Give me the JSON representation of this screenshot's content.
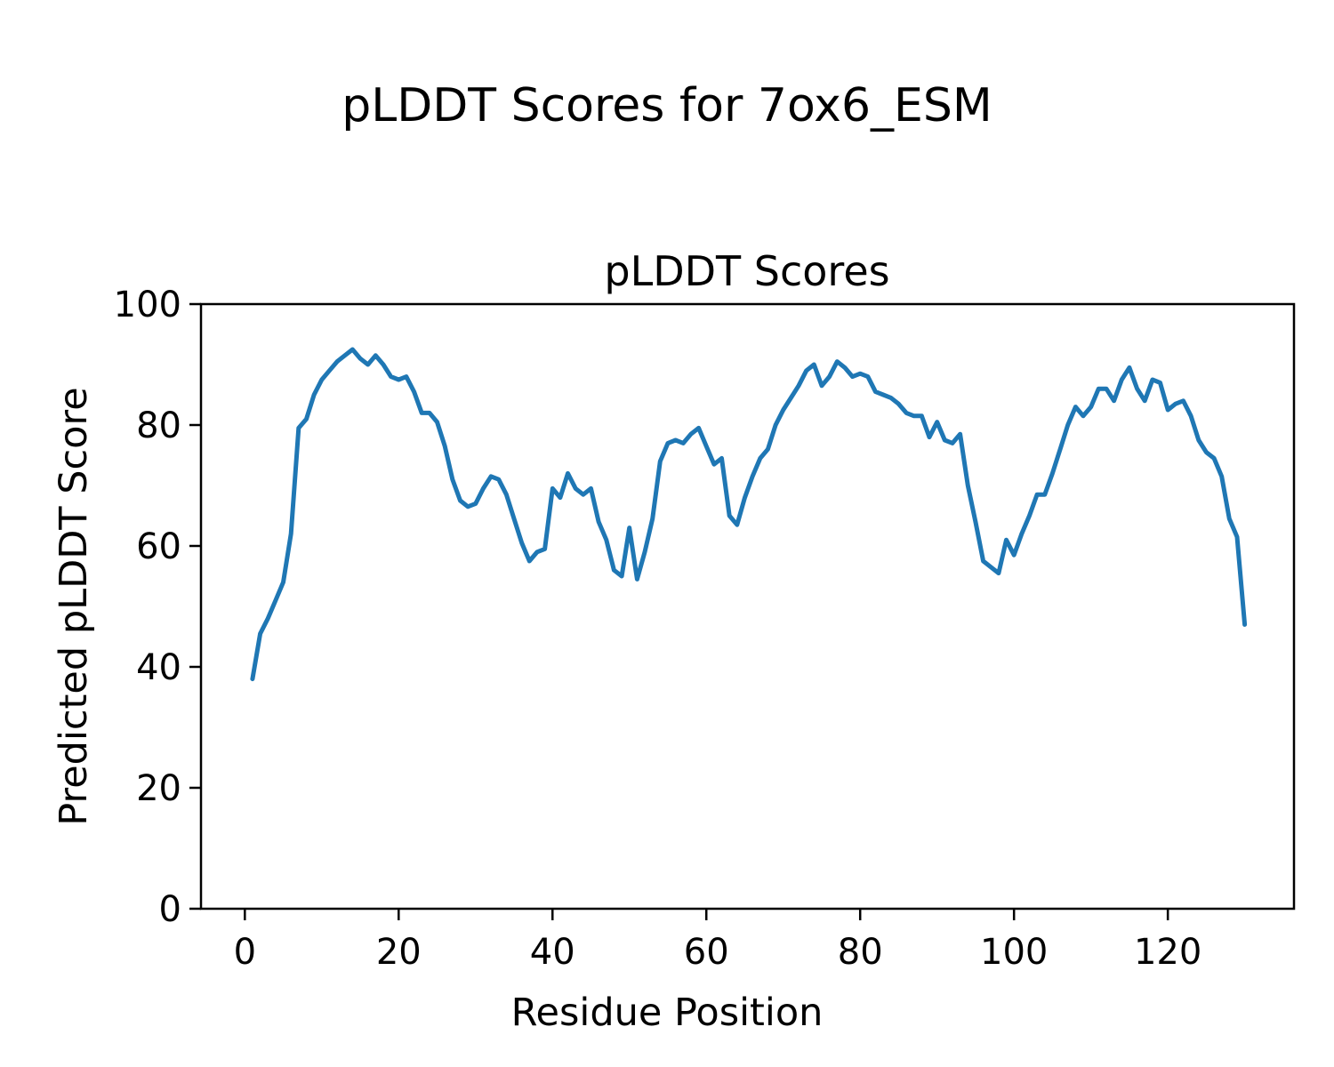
{
  "chart_data": {
    "type": "line",
    "suptitle": "pLDDT Scores for 7ox6_ESM",
    "title": "pLDDT Scores",
    "xlabel": "Residue Position",
    "ylabel": "Predicted pLDDT Score",
    "xlim": [
      -5.7,
      136.4
    ],
    "ylim": [
      0,
      100
    ],
    "xticks": [
      0,
      20,
      40,
      60,
      80,
      100,
      120
    ],
    "yticks": [
      0,
      20,
      40,
      60,
      80,
      100
    ],
    "grid": false,
    "legend_position": "none",
    "line_color": "#1f77b4",
    "line_width": 5,
    "text_color": "#000000",
    "spine_color": "#000000",
    "series": [
      {
        "name": "pLDDT",
        "x": [
          1,
          2,
          3,
          4,
          5,
          6,
          7,
          8,
          9,
          10,
          11,
          12,
          13,
          14,
          15,
          16,
          17,
          18,
          19,
          20,
          21,
          22,
          23,
          24,
          25,
          26,
          27,
          28,
          29,
          30,
          31,
          32,
          33,
          34,
          35,
          36,
          37,
          38,
          39,
          40,
          41,
          42,
          43,
          44,
          45,
          46,
          47,
          48,
          49,
          50,
          51,
          52,
          53,
          54,
          55,
          56,
          57,
          58,
          59,
          60,
          61,
          62,
          63,
          64,
          65,
          66,
          67,
          68,
          69,
          70,
          71,
          72,
          73,
          74,
          75,
          76,
          77,
          78,
          79,
          80,
          81,
          82,
          83,
          84,
          85,
          86,
          87,
          88,
          89,
          90,
          91,
          92,
          93,
          94,
          95,
          96,
          97,
          98,
          99,
          100,
          101,
          102,
          103,
          104,
          105,
          106,
          107,
          108,
          109,
          110,
          111,
          112,
          113,
          114,
          115,
          116,
          117,
          118,
          119,
          120,
          121,
          122,
          123,
          124,
          125,
          126,
          127,
          128,
          129,
          130
        ],
        "y": [
          38,
          45.5,
          48,
          51,
          54,
          62,
          79.5,
          81,
          85,
          87.5,
          89,
          90.5,
          91.5,
          92.5,
          91,
          90,
          91.5,
          90,
          88,
          87.5,
          88,
          85.5,
          82,
          82,
          80.5,
          76.5,
          71,
          67.5,
          66.5,
          67,
          69.5,
          71.5,
          71,
          68.5,
          64.5,
          60.5,
          57.5,
          59,
          59.5,
          69.5,
          68,
          72,
          69.5,
          68.5,
          69.5,
          64,
          61,
          56,
          55,
          63,
          54.5,
          59,
          64.5,
          74,
          77,
          77.5,
          77,
          78.5,
          79.5,
          76.5,
          73.5,
          74.5,
          65,
          63.5,
          68,
          71.5,
          74.5,
          76,
          80,
          82.5,
          84.5,
          86.5,
          89,
          90,
          86.5,
          88,
          90.5,
          89.5,
          88,
          88.5,
          88,
          85.5,
          85,
          84.5,
          83.5,
          82,
          81.5,
          81.5,
          78,
          80.5,
          77.5,
          77,
          78.5,
          70,
          64,
          57.5,
          56.5,
          55.5,
          61,
          58.5,
          62,
          65,
          68.5,
          68.5,
          72,
          76,
          80,
          83,
          81.5,
          83,
          86,
          86,
          84,
          87.5,
          89.5,
          86,
          84,
          87.5,
          87,
          82.5,
          83.5,
          84,
          81.5,
          77.5,
          75.5,
          74.5,
          71.5,
          64.5,
          61.5,
          47
        ]
      }
    ]
  }
}
